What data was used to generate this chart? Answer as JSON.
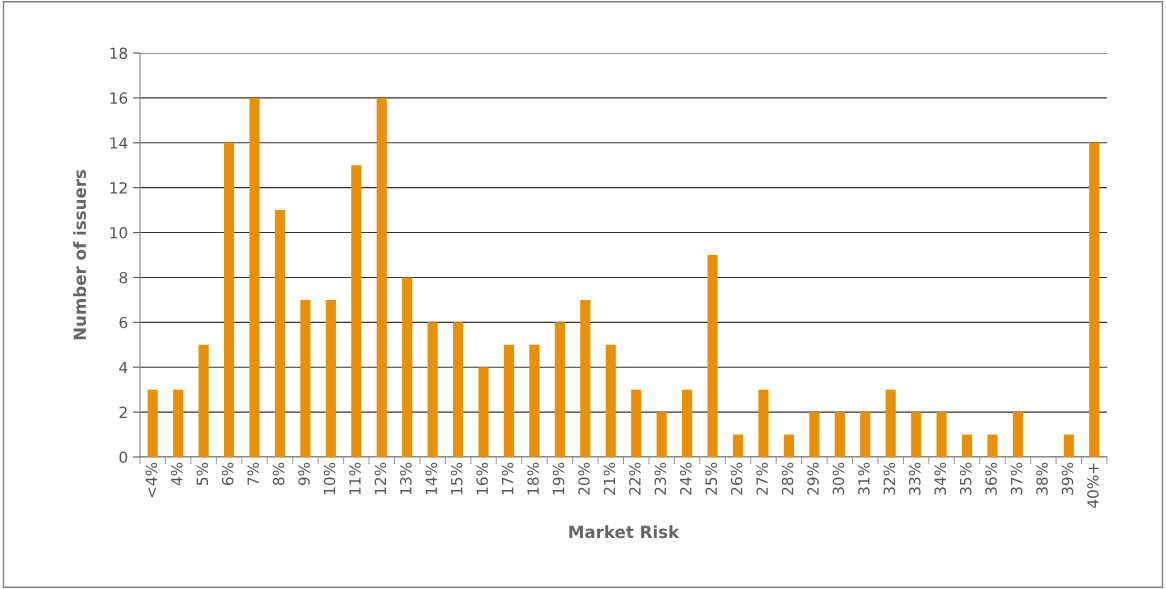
{
  "chart_data": {
    "type": "bar",
    "xlabel": "Market Risk",
    "ylabel": "Number of issuers",
    "categories": [
      "<4%",
      "4%",
      "5%",
      "6%",
      "7%",
      "8%",
      "9%",
      "10%",
      "11%",
      "12%",
      "13%",
      "14%",
      "15%",
      "16%",
      "17%",
      "18%",
      "19%",
      "20%",
      "21%",
      "22%",
      "23%",
      "24%",
      "25%",
      "26%",
      "27%",
      "28%",
      "29%",
      "30%",
      "31%",
      "32%",
      "33%",
      "34%",
      "35%",
      "36%",
      "37%",
      "38%",
      "39%",
      "40%+"
    ],
    "values": [
      3,
      3,
      5,
      14,
      16,
      11,
      7,
      7,
      13,
      16,
      8,
      6,
      6,
      4,
      5,
      5,
      6,
      7,
      5,
      3,
      2,
      3,
      9,
      1,
      3,
      1,
      2,
      2,
      2,
      3,
      2,
      2,
      1,
      1,
      2,
      0,
      1,
      14
    ],
    "color": "#e8900a",
    "ylim": [
      0,
      18
    ],
    "yticks": [
      0,
      2,
      4,
      6,
      8,
      10,
      12,
      14,
      16,
      18
    ],
    "grid": "y",
    "legend": false
  }
}
